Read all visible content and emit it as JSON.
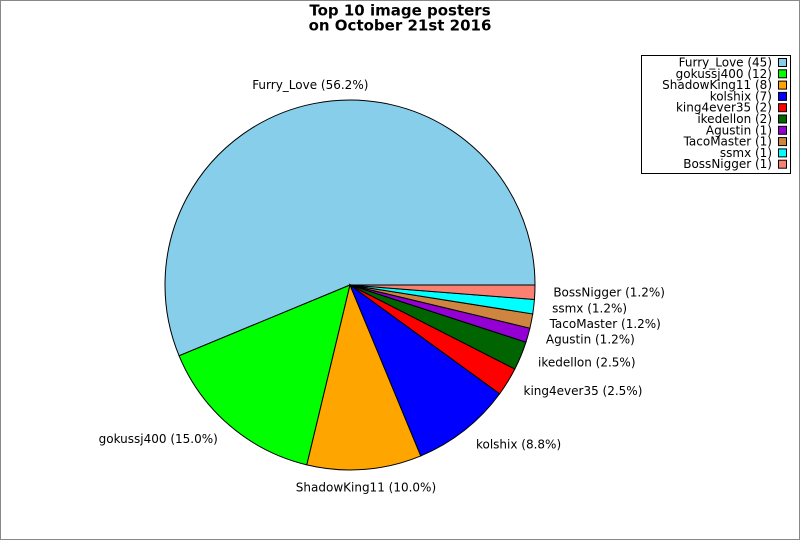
{
  "chart_data": {
    "type": "pie",
    "title": [
      "Top 10 image posters",
      "on October 21st 2016"
    ],
    "values": [
      45,
      12,
      8,
      7,
      2,
      2,
      1,
      1,
      1,
      1
    ],
    "value_labels": [
      "Furry_Love (56.2%)",
      "gokussj400 (15.0%)",
      "ShadowKing11 (10.0%)",
      "kolshix (8.8%)",
      "king4ever35 (2.5%)",
      "ikedellon (2.5%)",
      "Agustin (1.2%)",
      "TacoMaster (1.2%)",
      "ssmx (1.2%)",
      "BossNigger (1.2%)"
    ],
    "legend_labels": [
      "Furry_Love (45)",
      "gokussj400 (12)",
      "ShadowKing11 (8)",
      "kolshix (7)",
      "king4ever35 (2)",
      "ikedellon (2)",
      "Agustin (1)",
      "TacoMaster (1)",
      "ssmx (1)",
      "BossNigger (1)"
    ],
    "colors": [
      "#87ceeb",
      "#00ff00",
      "#ffa500",
      "#0000ff",
      "#ff0000",
      "#006400",
      "#9400d3",
      "#cd853f",
      "#00ffff",
      "#fa8072"
    ],
    "legend": "upper right"
  }
}
